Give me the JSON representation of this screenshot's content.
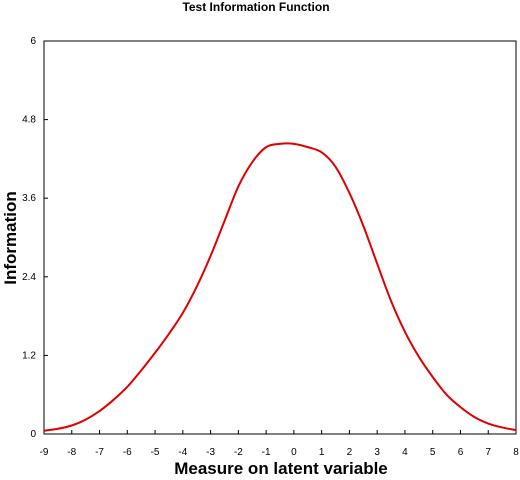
{
  "chart_data": {
    "type": "line",
    "title": "Test Information Function",
    "xlabel": "Measure on latent variable",
    "ylabel": "Information",
    "xlim": [
      -9,
      8
    ],
    "ylim": [
      0,
      6
    ],
    "x_ticks": [
      "-9",
      "-8",
      "-7",
      "-6",
      "-5",
      "-4",
      "-3",
      "-2",
      "-1",
      "0",
      "1",
      "2",
      "3",
      "4",
      "5",
      "6",
      "7",
      "8"
    ],
    "y_ticks": [
      "0",
      "1.2",
      "2.4",
      "3.6",
      "4.8",
      "6"
    ],
    "grid": false,
    "series": [
      {
        "color": "#e00000",
        "x": [
          -9,
          -8.5,
          -8,
          -7.5,
          -7,
          -6.5,
          -6,
          -5.5,
          -5,
          -4.5,
          -4,
          -3.5,
          -3,
          -2.5,
          -2,
          -1.5,
          -1,
          -0.5,
          0,
          0.5,
          1,
          1.5,
          2,
          2.5,
          3,
          3.5,
          4,
          4.5,
          5,
          5.5,
          6,
          6.5,
          7,
          7.5,
          8
        ],
        "y": [
          0.05,
          0.08,
          0.13,
          0.22,
          0.35,
          0.52,
          0.72,
          0.97,
          1.24,
          1.53,
          1.85,
          2.25,
          2.72,
          3.25,
          3.78,
          4.15,
          4.38,
          4.43,
          4.43,
          4.38,
          4.3,
          4.08,
          3.68,
          3.18,
          2.6,
          2.03,
          1.56,
          1.18,
          0.87,
          0.6,
          0.41,
          0.26,
          0.16,
          0.1,
          0.06
        ]
      }
    ]
  }
}
